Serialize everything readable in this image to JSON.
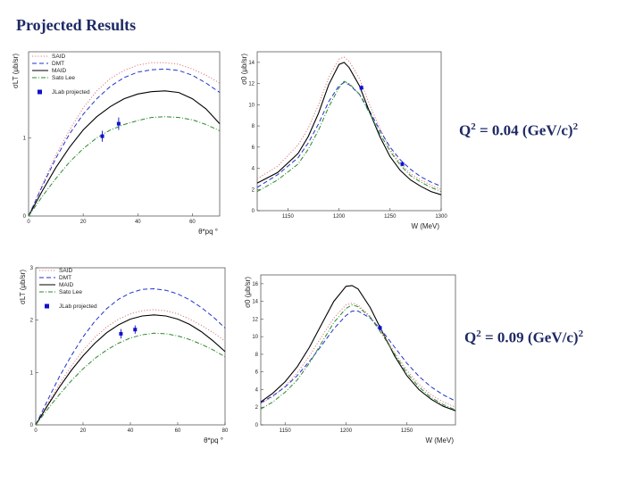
{
  "title": "Projected Results",
  "q_labels": [
    {
      "base": "Q",
      "sup1": "2",
      "mid": " = 0.04 (GeV/c)",
      "sup2": "2"
    },
    {
      "base": "Q",
      "sup1": "2",
      "mid": " = 0.09 (GeV/c)",
      "sup2": "2"
    }
  ],
  "colors": {
    "said": "#e07a7a",
    "dmt": "#2233cc",
    "maid": "#000000",
    "sato_lee": "#2a8a2a",
    "jlab": "#1010cc"
  },
  "chart_data": [
    {
      "type": "line",
      "xlabel": "θ*pq °",
      "ylabel": "σLT (μb/sr)",
      "xlim": [
        0,
        70
      ],
      "ylim": [
        0,
        2.1
      ],
      "xticks": [
        "0",
        "20",
        "40",
        "60"
      ],
      "yticks": [
        "0",
        "1"
      ],
      "ytick_values": [
        0,
        1
      ],
      "legend_position": "top-left",
      "series": [
        {
          "name": "SAID",
          "style": "dotted",
          "color": "#e07a7a",
          "x": [
            0,
            5,
            10,
            15,
            20,
            25,
            30,
            35,
            40,
            45,
            50,
            55,
            60,
            65,
            70
          ],
          "y": [
            0,
            0.4,
            0.78,
            1.1,
            1.38,
            1.6,
            1.76,
            1.86,
            1.93,
            1.96,
            1.96,
            1.94,
            1.88,
            1.8,
            1.7
          ]
        },
        {
          "name": "DMT",
          "style": "dashed",
          "color": "#2233cc",
          "x": [
            0,
            5,
            10,
            15,
            20,
            25,
            30,
            35,
            40,
            45,
            50,
            55,
            60,
            65,
            70
          ],
          "y": [
            0,
            0.38,
            0.74,
            1.05,
            1.3,
            1.5,
            1.66,
            1.77,
            1.84,
            1.87,
            1.88,
            1.86,
            1.8,
            1.7,
            1.58
          ]
        },
        {
          "name": "MAID",
          "style": "solid",
          "color": "#000000",
          "x": [
            0,
            5,
            10,
            15,
            20,
            25,
            30,
            35,
            40,
            45,
            50,
            55,
            60,
            65,
            70
          ],
          "y": [
            0,
            0.32,
            0.62,
            0.88,
            1.1,
            1.27,
            1.4,
            1.5,
            1.56,
            1.59,
            1.6,
            1.58,
            1.5,
            1.37,
            1.18
          ]
        },
        {
          "name": "Sato Lee",
          "style": "dashdot",
          "color": "#2a8a2a",
          "x": [
            0,
            5,
            10,
            15,
            20,
            25,
            30,
            35,
            40,
            45,
            50,
            55,
            60,
            65,
            70
          ],
          "y": [
            0,
            0.25,
            0.48,
            0.69,
            0.86,
            1.0,
            1.1,
            1.17,
            1.22,
            1.26,
            1.27,
            1.26,
            1.23,
            1.17,
            1.09
          ]
        },
        {
          "name": "JLab projected",
          "style": "points",
          "color": "#1010cc",
          "x": [
            27,
            33
          ],
          "y": [
            1.02,
            1.18
          ],
          "err": [
            0.07,
            0.08
          ]
        }
      ]
    },
    {
      "type": "line",
      "xlabel": "W (MeV)",
      "ylabel": "σ0 (μb/sr)",
      "xlim": [
        1120,
        1300
      ],
      "ylim": [
        0,
        15
      ],
      "xticks": [
        "1150",
        "1200",
        "1250",
        "1300"
      ],
      "yticks": [
        "0",
        "2",
        "4",
        "6",
        "8",
        "10",
        "12",
        "14"
      ],
      "xtick_values": [
        1150,
        1200,
        1250,
        1300
      ],
      "ytick_values": [
        0,
        2,
        4,
        6,
        8,
        10,
        12,
        14
      ],
      "series": [
        {
          "name": "SAID",
          "style": "dotted",
          "color": "#e07a7a",
          "x": [
            1120,
            1140,
            1160,
            1170,
            1180,
            1190,
            1200,
            1205,
            1210,
            1220,
            1230,
            1240,
            1250,
            1260,
            1270,
            1280,
            1290,
            1300
          ],
          "y": [
            3.0,
            4.2,
            6.2,
            7.8,
            10.0,
            12.6,
            14.3,
            14.5,
            14.1,
            12.5,
            10.0,
            7.8,
            5.8,
            4.5,
            3.5,
            2.9,
            2.4,
            2.0
          ]
        },
        {
          "name": "DMT",
          "style": "dashed",
          "color": "#2233cc",
          "x": [
            1120,
            1140,
            1160,
            1170,
            1180,
            1190,
            1200,
            1205,
            1210,
            1220,
            1230,
            1240,
            1250,
            1260,
            1270,
            1280,
            1290,
            1300
          ],
          "y": [
            2.2,
            3.4,
            5.0,
            6.4,
            8.2,
            10.3,
            11.8,
            12.1,
            11.9,
            11.0,
            9.4,
            7.6,
            6.0,
            4.8,
            3.9,
            3.2,
            2.7,
            2.3
          ]
        },
        {
          "name": "MAID",
          "style": "solid",
          "color": "#000000",
          "x": [
            1120,
            1140,
            1160,
            1170,
            1180,
            1190,
            1200,
            1205,
            1210,
            1220,
            1230,
            1240,
            1250,
            1260,
            1270,
            1280,
            1290,
            1300
          ],
          "y": [
            2.6,
            3.6,
            5.4,
            7.0,
            9.2,
            11.9,
            13.8,
            14.0,
            13.5,
            11.8,
            9.3,
            7.0,
            5.1,
            3.8,
            2.9,
            2.3,
            1.8,
            1.5
          ]
        },
        {
          "name": "Sato Lee",
          "style": "dashdot",
          "color": "#2a8a2a",
          "x": [
            1120,
            1140,
            1160,
            1170,
            1180,
            1190,
            1200,
            1205,
            1210,
            1220,
            1230,
            1240,
            1250,
            1260,
            1270,
            1280,
            1290,
            1300
          ],
          "y": [
            1.8,
            2.9,
            4.4,
            5.8,
            7.6,
            9.8,
            11.6,
            12.2,
            12.0,
            11.0,
            9.2,
            7.3,
            5.6,
            4.3,
            3.3,
            2.7,
            2.2,
            1.8
          ]
        },
        {
          "name": "JLab projected",
          "style": "points",
          "color": "#1010cc",
          "x": [
            1222,
            1262
          ],
          "y": [
            11.6,
            4.4
          ],
          "err": [
            0.25,
            0.2
          ]
        }
      ]
    },
    {
      "type": "line",
      "xlabel": "θ*pq °",
      "ylabel": "σLT (μb/sr)",
      "xlim": [
        0,
        80
      ],
      "ylim": [
        0,
        3
      ],
      "xticks": [
        "0",
        "20",
        "40",
        "60",
        "80"
      ],
      "yticks": [
        "0",
        "1",
        "2",
        "3"
      ],
      "ytick_values": [
        0,
        1,
        2,
        3
      ],
      "legend_position": "top-left",
      "series": [
        {
          "name": "SAID",
          "style": "dotted",
          "color": "#e07a7a",
          "x": [
            0,
            5,
            10,
            15,
            20,
            25,
            30,
            35,
            40,
            45,
            50,
            55,
            60,
            65,
            70,
            75,
            80
          ],
          "y": [
            0,
            0.4,
            0.78,
            1.12,
            1.42,
            1.67,
            1.87,
            2.02,
            2.12,
            2.18,
            2.2,
            2.18,
            2.12,
            2.02,
            1.9,
            1.76,
            1.6
          ]
        },
        {
          "name": "DMT",
          "style": "dashed",
          "color": "#2233cc",
          "x": [
            0,
            5,
            10,
            15,
            20,
            25,
            30,
            35,
            40,
            45,
            50,
            55,
            60,
            65,
            70,
            75,
            80
          ],
          "y": [
            0,
            0.47,
            0.92,
            1.32,
            1.68,
            1.98,
            2.22,
            2.4,
            2.52,
            2.59,
            2.6,
            2.57,
            2.5,
            2.39,
            2.24,
            2.06,
            1.85
          ]
        },
        {
          "name": "MAID",
          "style": "solid",
          "color": "#000000",
          "x": [
            0,
            5,
            10,
            15,
            20,
            25,
            30,
            35,
            40,
            45,
            50,
            55,
            60,
            65,
            70,
            75,
            80
          ],
          "y": [
            0,
            0.37,
            0.72,
            1.04,
            1.32,
            1.56,
            1.76,
            1.91,
            2.02,
            2.08,
            2.1,
            2.08,
            2.02,
            1.92,
            1.78,
            1.6,
            1.4
          ]
        },
        {
          "name": "Sato Lee",
          "style": "dashdot",
          "color": "#2a8a2a",
          "x": [
            0,
            5,
            10,
            15,
            20,
            25,
            30,
            35,
            40,
            45,
            50,
            55,
            60,
            65,
            70,
            75,
            80
          ],
          "y": [
            0,
            0.3,
            0.58,
            0.84,
            1.07,
            1.27,
            1.43,
            1.56,
            1.66,
            1.72,
            1.75,
            1.74,
            1.7,
            1.63,
            1.54,
            1.43,
            1.3
          ]
        },
        {
          "name": "JLab projected",
          "style": "points",
          "color": "#1010cc",
          "x": [
            36,
            42
          ],
          "y": [
            1.74,
            1.82
          ],
          "err": [
            0.09,
            0.08
          ]
        }
      ]
    },
    {
      "type": "line",
      "xlabel": "W (MeV)",
      "ylabel": "σ0 (μb/sr)",
      "xlim": [
        1130,
        1290
      ],
      "ylim": [
        0,
        17
      ],
      "xticks": [
        "1150",
        "1200",
        "1250"
      ],
      "yticks": [
        "0",
        "2",
        "4",
        "6",
        "8",
        "10",
        "12",
        "14",
        "16"
      ],
      "xtick_values": [
        1150,
        1200,
        1250
      ],
      "ytick_values": [
        0,
        2,
        4,
        6,
        8,
        10,
        12,
        14,
        16
      ],
      "series": [
        {
          "name": "MAID",
          "style": "solid",
          "color": "#000000",
          "x": [
            1130,
            1140,
            1150,
            1160,
            1170,
            1180,
            1190,
            1200,
            1205,
            1210,
            1220,
            1230,
            1240,
            1250,
            1260,
            1270,
            1280,
            1290
          ],
          "y": [
            2.6,
            3.6,
            4.9,
            6.6,
            8.8,
            11.4,
            14.0,
            15.7,
            15.8,
            15.4,
            13.3,
            10.5,
            7.8,
            5.6,
            4.0,
            2.9,
            2.1,
            1.6
          ]
        },
        {
          "name": "SAID",
          "style": "dotted",
          "color": "#e07a7a",
          "x": [
            1130,
            1140,
            1150,
            1160,
            1170,
            1180,
            1190,
            1200,
            1205,
            1210,
            1220,
            1230,
            1240,
            1250,
            1260,
            1270,
            1280,
            1290
          ],
          "y": [
            2.4,
            3.2,
            4.4,
            5.9,
            7.8,
            10.0,
            12.1,
            13.6,
            13.8,
            13.6,
            12.3,
            10.4,
            8.2,
            6.2,
            4.6,
            3.4,
            2.6,
            2.0
          ]
        },
        {
          "name": "DMT",
          "style": "dashed",
          "color": "#2233cc",
          "x": [
            1130,
            1140,
            1150,
            1160,
            1170,
            1180,
            1190,
            1200,
            1205,
            1210,
            1220,
            1230,
            1240,
            1250,
            1260,
            1270,
            1280,
            1290
          ],
          "y": [
            2.5,
            3.3,
            4.3,
            5.6,
            7.2,
            9.0,
            10.9,
            12.4,
            12.9,
            12.9,
            12.1,
            10.6,
            8.8,
            7.0,
            5.5,
            4.3,
            3.4,
            2.7
          ]
        },
        {
          "name": "Sato Lee",
          "style": "dashdot",
          "color": "#2a8a2a",
          "x": [
            1130,
            1140,
            1150,
            1160,
            1170,
            1180,
            1190,
            1200,
            1205,
            1210,
            1220,
            1230,
            1240,
            1250,
            1260,
            1270,
            1280,
            1290
          ],
          "y": [
            1.8,
            2.6,
            3.7,
            5.1,
            7.0,
            9.3,
            11.6,
            13.2,
            13.6,
            13.4,
            12.2,
            10.2,
            8.0,
            5.9,
            4.3,
            3.1,
            2.3,
            1.7
          ]
        },
        {
          "name": "JLab projected",
          "style": "points",
          "color": "#1010cc",
          "x": [
            1228
          ],
          "y": [
            11.0
          ],
          "err": [
            0.3
          ]
        }
      ]
    }
  ]
}
